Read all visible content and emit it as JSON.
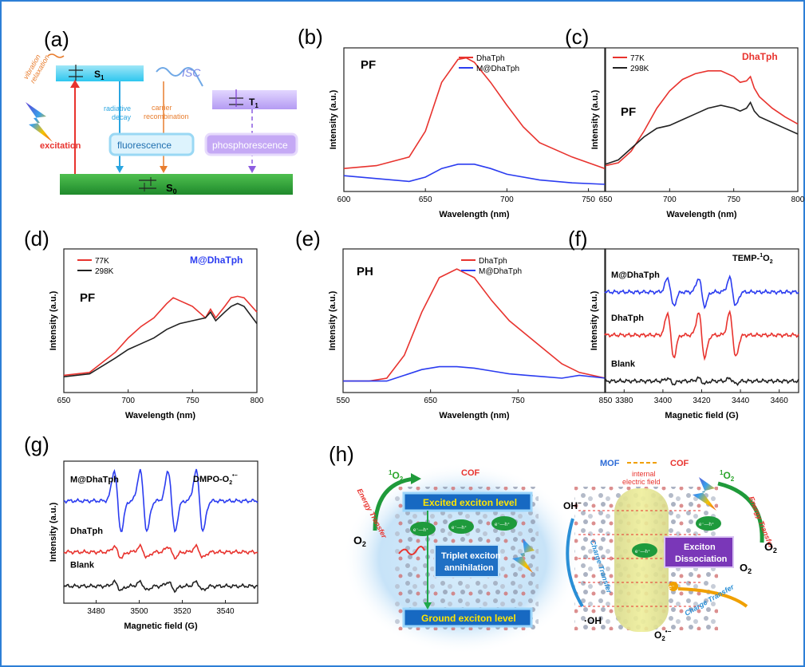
{
  "panels": {
    "a": {
      "label": "(a)",
      "s1": "S",
      "s1_sub": "1",
      "t1": "T",
      "t1_sub": "1",
      "s0": "S",
      "s0_sub": "0",
      "vibration": "vibration",
      "relaxation": "relaxation",
      "isc": "ISC",
      "radiative": "radiative",
      "decay": "decay",
      "carrier": "carrier",
      "recombination": "recombination",
      "excitation": "excitation",
      "fluorescence": "fluorescence",
      "phosphorescence": "phosphorescence"
    },
    "b": {
      "label": "(b)",
      "title": "PF",
      "legend": [
        "DhaTph",
        "M@DhaTph"
      ]
    },
    "c": {
      "label": "(c)",
      "title": "PF",
      "sample": "DhaTph",
      "legend": [
        "77K",
        "298K"
      ]
    },
    "d": {
      "label": "(d)",
      "title": "PF",
      "sample": "M@DhaTph",
      "legend": [
        "77K",
        "298K"
      ]
    },
    "e": {
      "label": "(e)",
      "title": "PH",
      "legend": [
        "DhaTph",
        "M@DhaTph"
      ]
    },
    "f": {
      "label": "(f)",
      "title_main": "TEMP-",
      "title_sup": "1",
      "title_end": "O",
      "title_sub": "2",
      "labels": [
        "M@DhaTph",
        "DhaTph",
        "Blank"
      ]
    },
    "g": {
      "label": "(g)",
      "title_main": "DMPO-O",
      "title_sub": "2",
      "title_sup": "•−",
      "labels": [
        "M@DhaTph",
        "DhaTph",
        "Blank"
      ]
    },
    "h": {
      "label": "(h)",
      "left": {
        "cof": "COF",
        "singlet_sup": "1",
        "singlet": "O",
        "singlet_sub": "2",
        "energy_transfer": "Energy Transfer",
        "o2": "O",
        "o2_sub": "2",
        "excited": "Excited exciton level",
        "ground": "Ground exciton level",
        "triplet_line1": "Triplet exciton",
        "triplet_line2": "annihilation",
        "pair": "e⁻—h⁺"
      },
      "right": {
        "mof": "MOF",
        "cof": "COF",
        "field_line1": "internal",
        "field_line2": "electric field",
        "singlet_sup": "1",
        "singlet": "O",
        "singlet_sub": "2",
        "energy_transfer": "Energy Transfer",
        "oh_minus": "OH",
        "oh_minus_sup": "−",
        "charge_transfer_left": "Charge Transfer",
        "charge_transfer_right": "Charge Transfer",
        "oh_radical": "·OH",
        "exciton_line1": "Exciton",
        "exciton_line2": "Dissociation",
        "o2_a": "O",
        "o2_a_sub": "2",
        "o2_b": "O",
        "o2_b_sub": "2",
        "superoxide": "O",
        "superoxide_sub": "2",
        "superoxide_sup": "•−",
        "pair": "e⁻—h⁺",
        "e": "e⁻"
      }
    }
  },
  "colors": {
    "red": "#e8332e",
    "black": "#222222",
    "blue": "#2b3cf0",
    "frame": "#2d7fd6"
  },
  "chart_data": [
    {
      "id": "b",
      "type": "line",
      "title": "PF",
      "xlabel": "Wavelength (nm)",
      "ylabel": "Intensity (a.u.)",
      "xlim": [
        600,
        760
      ],
      "ylim": [
        0,
        1
      ],
      "xticks": [
        600,
        650,
        700,
        750
      ],
      "series": [
        {
          "name": "DhaTph",
          "color": "#e8332e",
          "x": [
            600,
            620,
            640,
            650,
            660,
            670,
            675,
            680,
            690,
            700,
            710,
            720,
            740,
            760
          ],
          "y": [
            0.16,
            0.18,
            0.24,
            0.42,
            0.76,
            0.92,
            0.93,
            0.9,
            0.76,
            0.6,
            0.45,
            0.34,
            0.24,
            0.16
          ]
        },
        {
          "name": "M@DhaTph",
          "color": "#2b3cf0",
          "x": [
            600,
            620,
            640,
            650,
            660,
            670,
            680,
            690,
            700,
            720,
            740,
            760
          ],
          "y": [
            0.11,
            0.09,
            0.07,
            0.1,
            0.16,
            0.19,
            0.19,
            0.16,
            0.12,
            0.08,
            0.06,
            0.05
          ]
        }
      ]
    },
    {
      "id": "c",
      "type": "line",
      "title": "PF",
      "xlabel": "Wavelength (nm)",
      "ylabel": "Intensity (a.u.)",
      "xlim": [
        650,
        800
      ],
      "ylim": [
        0,
        1
      ],
      "xticks": [
        650,
        700,
        750,
        800
      ],
      "series": [
        {
          "name": "77K",
          "color": "#e8332e",
          "x": [
            650,
            660,
            670,
            680,
            690,
            700,
            710,
            720,
            730,
            740,
            750,
            755,
            760,
            763,
            766,
            770,
            780,
            790,
            800
          ],
          "y": [
            0.18,
            0.2,
            0.28,
            0.42,
            0.58,
            0.7,
            0.78,
            0.82,
            0.84,
            0.84,
            0.8,
            0.76,
            0.77,
            0.8,
            0.72,
            0.66,
            0.58,
            0.52,
            0.47
          ]
        },
        {
          "name": "298K",
          "color": "#222222",
          "x": [
            650,
            660,
            670,
            680,
            690,
            700,
            710,
            720,
            730,
            740,
            750,
            755,
            760,
            763,
            766,
            770,
            780,
            790,
            800
          ],
          "y": [
            0.19,
            0.22,
            0.3,
            0.38,
            0.44,
            0.46,
            0.5,
            0.54,
            0.58,
            0.6,
            0.58,
            0.56,
            0.58,
            0.62,
            0.56,
            0.52,
            0.48,
            0.44,
            0.4
          ]
        }
      ]
    },
    {
      "id": "d",
      "type": "line",
      "title": "PF",
      "xlabel": "Wavelength (nm)",
      "ylabel": "Intensity (a.u.)",
      "xlim": [
        650,
        800
      ],
      "ylim": [
        0,
        1
      ],
      "xticks": [
        650,
        700,
        750,
        800
      ],
      "series": [
        {
          "name": "77K",
          "color": "#e8332e",
          "x": [
            650,
            670,
            690,
            700,
            710,
            720,
            730,
            735,
            740,
            750,
            760,
            764,
            768,
            775,
            780,
            785,
            790,
            800
          ],
          "y": [
            0.12,
            0.14,
            0.28,
            0.38,
            0.46,
            0.52,
            0.62,
            0.66,
            0.64,
            0.6,
            0.52,
            0.58,
            0.52,
            0.6,
            0.66,
            0.67,
            0.66,
            0.56
          ]
        },
        {
          "name": "298K",
          "color": "#222222",
          "x": [
            650,
            670,
            690,
            700,
            710,
            720,
            730,
            740,
            750,
            760,
            764,
            768,
            775,
            780,
            785,
            790,
            800
          ],
          "y": [
            0.11,
            0.13,
            0.24,
            0.3,
            0.34,
            0.38,
            0.44,
            0.48,
            0.5,
            0.52,
            0.56,
            0.5,
            0.56,
            0.6,
            0.62,
            0.6,
            0.48
          ]
        }
      ]
    },
    {
      "id": "e",
      "type": "line",
      "title": "PH",
      "xlabel": "Wavelength (nm)",
      "ylabel": "Intensity (a.u.)",
      "xlim": [
        550,
        850
      ],
      "ylim": [
        0,
        1
      ],
      "xticks": [
        550,
        650,
        750,
        850
      ],
      "series": [
        {
          "name": "DhaTph",
          "color": "#e8332e",
          "x": [
            550,
            580,
            600,
            620,
            640,
            660,
            680,
            700,
            720,
            740,
            760,
            780,
            800,
            820,
            850
          ],
          "y": [
            0.08,
            0.08,
            0.1,
            0.26,
            0.56,
            0.8,
            0.86,
            0.8,
            0.64,
            0.5,
            0.4,
            0.3,
            0.2,
            0.14,
            0.1
          ]
        },
        {
          "name": "M@DhaTph",
          "color": "#2b3cf0",
          "x": [
            550,
            580,
            600,
            620,
            640,
            660,
            680,
            700,
            720,
            740,
            760,
            780,
            800,
            820,
            850
          ],
          "y": [
            0.08,
            0.08,
            0.08,
            0.12,
            0.16,
            0.18,
            0.18,
            0.17,
            0.15,
            0.13,
            0.12,
            0.11,
            0.1,
            0.12,
            0.1
          ]
        }
      ]
    },
    {
      "id": "f",
      "type": "line",
      "title": "TEMP-1O2",
      "xlabel": "Magnetic field (G)",
      "ylabel": "Intensity (a.u.)",
      "xlim": [
        3370,
        3470
      ],
      "xticks": [
        3380,
        3400,
        3420,
        3440,
        3460
      ],
      "peaks": [
        3404,
        3420,
        3436
      ],
      "series": [
        {
          "name": "M@DhaTph",
          "color": "#2b3cf0",
          "baseline": 0.7,
          "amplitude": 0.1
        },
        {
          "name": "DhaTph",
          "color": "#e8332e",
          "baseline": 0.4,
          "amplitude": 0.16
        },
        {
          "name": "Blank",
          "color": "#222222",
          "baseline": 0.08,
          "amplitude": 0.02
        }
      ]
    },
    {
      "id": "g",
      "type": "line",
      "title": "DMPO-O2•−",
      "xlabel": "Magnetic field (G)",
      "ylabel": "Intensity (a.u.)",
      "xlim": [
        3465,
        3555
      ],
      "xticks": [
        3480,
        3500,
        3520,
        3540
      ],
      "peaks": [
        3490,
        3502,
        3515,
        3528
      ],
      "series": [
        {
          "name": "M@DhaTph",
          "color": "#2b3cf0",
          "baseline": 0.72,
          "amplitude": 0.22
        },
        {
          "name": "DhaTph",
          "color": "#e8332e",
          "baseline": 0.36,
          "amplitude": 0.04
        },
        {
          "name": "Blank",
          "color": "#222222",
          "baseline": 0.12,
          "amplitude": 0.03
        }
      ]
    }
  ]
}
